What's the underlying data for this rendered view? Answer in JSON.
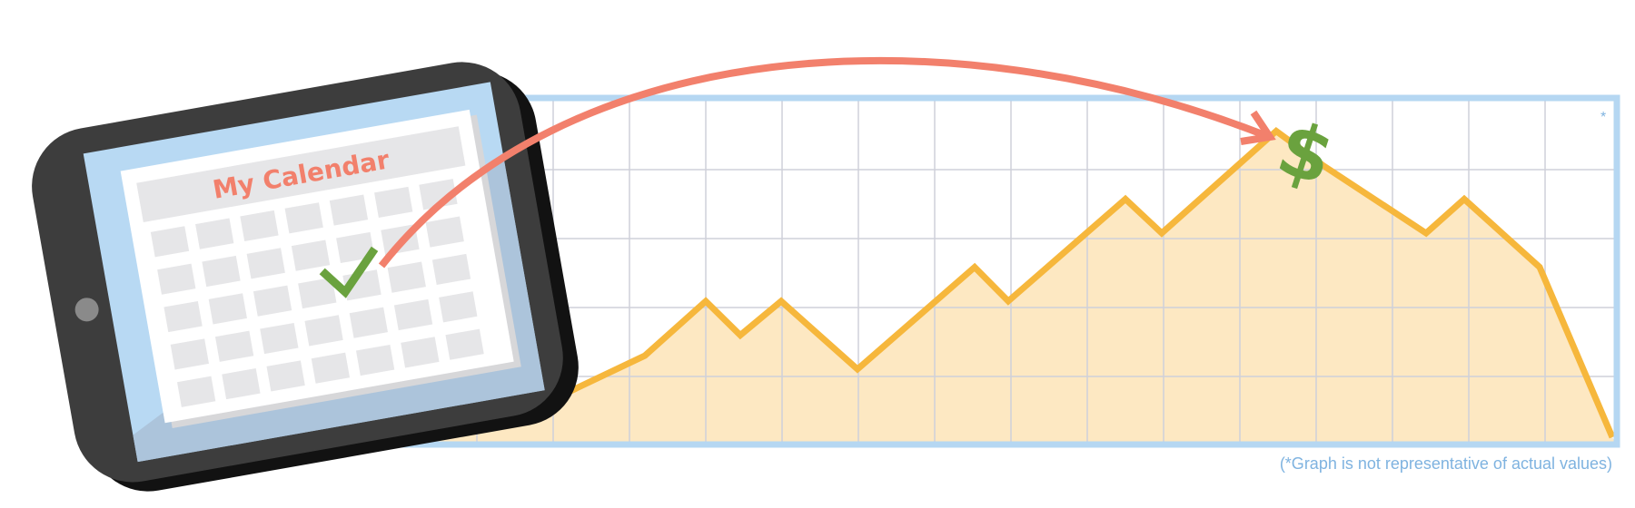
{
  "calendar": {
    "title": "My Calendar"
  },
  "graph": {
    "asterisk": "*",
    "footnote": "(*Graph is not representative of actual values)"
  },
  "chart_data": {
    "type": "area",
    "series": [
      {
        "values": [
          0.5,
          1.2,
          2.0,
          1.5,
          2.0,
          1.0,
          2.5,
          2.0,
          3.5,
          3.0,
          4.5,
          4.0,
          3.0,
          3.5,
          2.5,
          0.0
        ]
      }
    ]
  },
  "icons": {
    "check": "check-icon",
    "dollar": "dollar-icon",
    "arrow": "curved-arrow",
    "tablet": "tablet-icon"
  },
  "colors": {
    "frame": "#b5d7f2",
    "grid": "#cfd0da",
    "line": "#f6b73c",
    "fill": "#fde8c2",
    "arrow": "#f2806c",
    "check": "#6aa23e",
    "dollar": "#6aa23e",
    "tablet": "#3d3d3d",
    "calendarTitle": "#f2806c",
    "note": "#7fb3e0"
  }
}
